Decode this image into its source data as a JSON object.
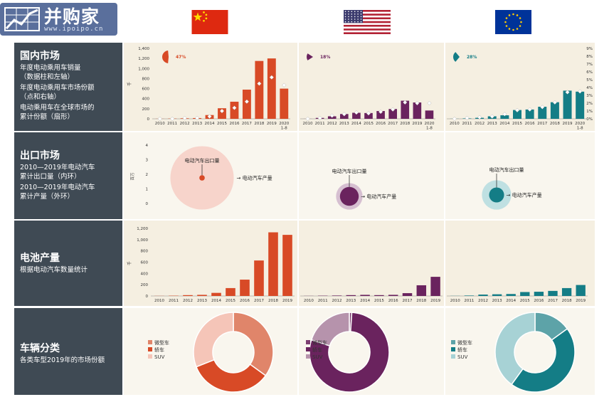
{
  "brand": {
    "name": "并购家",
    "url": "www.ipoipo.cn"
  },
  "markets": [
    "china",
    "usa",
    "eu"
  ],
  "colors": {
    "china": "#d84a26",
    "usa": "#6a235e",
    "eu": "#147d86",
    "label_bg": "#3f4a54",
    "panel_bg_1": "#f5efe1",
    "panel_bg_2": "#f9f6ee"
  },
  "rows": {
    "domestic": {
      "title": "国内市场",
      "subs": [
        "年度电动乘用车销量\n（数据柱和左轴）",
        "年度电动乘用车市场份额\n（点和右轴）",
        "电动乘用车在全球市场的\n累计份额（扇形）"
      ]
    },
    "export": {
      "title": "出口市场",
      "subs": [
        "2010—2019年电动汽车\n累计出口量（内环）",
        "2010—2019年电动汽车\n累计产量（外环）"
      ]
    },
    "battery": {
      "title": "电池产量",
      "subs": [
        "根据电动汽车数量统计"
      ]
    },
    "vehicle": {
      "title": "车辆分类",
      "subs": [
        "各类车型2019年的市场份额"
      ]
    }
  },
  "chart_data": [
    {
      "type": "bar",
      "id": "domestic",
      "categories": [
        "2010",
        "2011",
        "2012",
        "2013",
        "2014",
        "2015",
        "2016",
        "2017",
        "2018",
        "2019",
        "2020\n1-8"
      ],
      "left_axis": {
        "ylabel": "千",
        "ylim": [
          0,
          1400
        ],
        "ticks": [
          "0",
          "200",
          "400",
          "600",
          "800",
          "1,000",
          "1,200",
          "1,400"
        ]
      },
      "right_axis": {
        "ylim": [
          0,
          9
        ],
        "ticks": [
          "0%",
          "1%",
          "2%",
          "3%",
          "4%",
          "5%",
          "6%",
          "7%",
          "8%",
          "9%"
        ]
      },
      "series": [
        {
          "market": "china",
          "values": [
            2,
            5,
            10,
            15,
            75,
            210,
            340,
            580,
            1150,
            1200,
            600
          ],
          "share_pct": [
            0.0,
            0.0,
            0.1,
            0.1,
            0.3,
            1.0,
            1.4,
            2.2,
            4.5,
            5.3,
            4.3
          ],
          "global_share": 47,
          "global_share_label": "47%"
        },
        {
          "market": "usa",
          "values": [
            1,
            18,
            50,
            95,
            120,
            115,
            155,
            195,
            360,
            325,
            165
          ],
          "share_pct": [
            0.0,
            0.1,
            0.4,
            0.6,
            0.8,
            0.7,
            0.9,
            1.2,
            2.1,
            2.0,
            2.0
          ],
          "global_share": 18,
          "global_share_label": "18%"
        },
        {
          "market": "eu",
          "values": [
            2,
            8,
            20,
            50,
            70,
            175,
            185,
            240,
            330,
            560,
            540
          ],
          "share_pct": [
            0.0,
            0.1,
            0.2,
            0.3,
            0.6,
            1.1,
            1.2,
            1.5,
            2.1,
            3.4,
            3.5
          ],
          "global_share": 28,
          "global_share_label": "28%"
        }
      ]
    },
    {
      "type": "bubble",
      "id": "export",
      "ylabel": "百万",
      "ylim": [
        0,
        4
      ],
      "ticks": [
        "0",
        "1",
        "2",
        "3",
        "4"
      ],
      "inner_label": "电动汽车出口量",
      "outer_label": "电动汽车产量",
      "series": [
        {
          "market": "china",
          "production_m": 4.1,
          "export_m": 0.03
        },
        {
          "market": "usa",
          "production_m": 0.72,
          "export_m": 0.36
        },
        {
          "market": "eu",
          "production_m": 0.88,
          "export_m": 0.23
        }
      ]
    },
    {
      "type": "bar",
      "id": "battery",
      "categories": [
        "2010",
        "2011",
        "2012",
        "2013",
        "2014",
        "2015",
        "2016",
        "2017",
        "2018",
        "2019"
      ],
      "ylabel": "千",
      "ylim": [
        0,
        1200
      ],
      "ticks": [
        "0",
        "200",
        "400",
        "600",
        "800",
        "1,000",
        "1,200"
      ],
      "series": [
        {
          "market": "china",
          "values": [
            2,
            5,
            15,
            20,
            55,
            140,
            290,
            630,
            1130,
            1085
          ]
        },
        {
          "market": "usa",
          "values": [
            2,
            5,
            8,
            15,
            20,
            15,
            20,
            50,
            190,
            340
          ]
        },
        {
          "market": "eu",
          "values": [
            2,
            8,
            25,
            30,
            35,
            70,
            75,
            90,
            140,
            195
          ]
        }
      ]
    },
    {
      "type": "pie",
      "id": "vehicle",
      "categories": [
        "微型车",
        "轿车",
        "SUV"
      ],
      "series": [
        {
          "market": "china",
          "colors": [
            "#e0856a",
            "#d84a26",
            "#f5c5b8"
          ],
          "values": [
            35,
            34,
            31
          ]
        },
        {
          "market": "usa",
          "colors": [
            "#7d3f72",
            "#6a235e",
            "#b693ac"
          ],
          "values": [
            1,
            79,
            20
          ]
        },
        {
          "market": "eu",
          "colors": [
            "#5da3a8",
            "#147d86",
            "#a7d2d5"
          ],
          "values": [
            15,
            45,
            40
          ]
        }
      ]
    }
  ]
}
